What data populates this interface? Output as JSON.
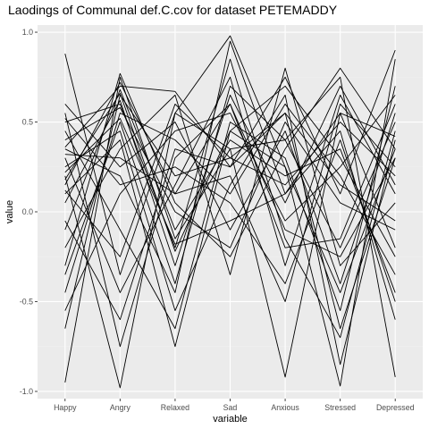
{
  "chart_data": {
    "type": "line",
    "title": "Laodings of Communal def.C.cov for dataset PETEMADDY",
    "xlabel": "variable",
    "ylabel": "value",
    "categories": [
      "Happy",
      "Angry",
      "Relaxed",
      "Sad",
      "Anxious",
      "Stressed",
      "Depressed"
    ],
    "ylim": [
      -1.04,
      1.04
    ],
    "yticks": [
      -1.0,
      -0.5,
      0.0,
      0.5,
      1.0
    ],
    "ytick_labels": [
      "-1.0",
      "-0.5",
      "0.0",
      "0.5",
      "1.0"
    ],
    "grid": true,
    "legend": "none",
    "colors": {
      "panel": "#ebebeb",
      "grid_major": "#ffffff",
      "grid_minor": "#f2f2f2",
      "line": "#000000",
      "tick_text": "#4d4d4d",
      "tick_mark": "#333333"
    },
    "series": [
      {
        "values": [
          0.88,
          -0.35,
          0.55,
          0.98,
          0.25,
          -0.97,
          0.85
        ]
      },
      {
        "values": [
          -0.95,
          0.75,
          -0.15,
          0.35,
          -0.92,
          0.55,
          -0.2
        ]
      },
      {
        "values": [
          0.36,
          0.7,
          0.67,
          0.25,
          0.75,
          0.1,
          0.9
        ]
      },
      {
        "values": [
          -0.65,
          0.65,
          0.2,
          0.3,
          0.55,
          -0.65,
          0.3
        ]
      },
      {
        "values": [
          0.2,
          -0.98,
          0.55,
          0.35,
          0.4,
          0.75,
          -0.92
        ]
      },
      {
        "values": [
          0.5,
          0.6,
          -0.2,
          0.85,
          -0.15,
          -0.7,
          0.45
        ]
      },
      {
        "values": [
          0.1,
          0.4,
          -0.75,
          0.45,
          0.7,
          0.3,
          -0.25
        ]
      },
      {
        "values": [
          -0.3,
          0.77,
          0.05,
          -0.25,
          0.35,
          0.8,
          0.35
        ]
      },
      {
        "values": [
          0.55,
          -0.75,
          0.3,
          0.6,
          -0.2,
          -0.15,
          0.6
        ]
      },
      {
        "values": [
          0.35,
          0.2,
          -0.45,
          0.95,
          0.1,
          0.45,
          -0.6
        ]
      },
      {
        "values": [
          -0.2,
          0.35,
          0.65,
          -0.35,
          0.8,
          -0.3,
          0.05
        ]
      },
      {
        "values": [
          0.15,
          0.72,
          0.1,
          0.2,
          -0.5,
          0.6,
          0.25
        ]
      },
      {
        "values": [
          0.45,
          -0.1,
          -0.65,
          0.5,
          0.3,
          -0.55,
          0.7
        ]
      },
      {
        "values": [
          -0.45,
          0.55,
          0.4,
          0.1,
          0.6,
          0.2,
          -0.35
        ]
      },
      {
        "values": [
          0.05,
          0.62,
          -0.3,
          0.65,
          0.05,
          0.7,
          0.15
        ]
      },
      {
        "values": [
          0.6,
          0.25,
          0.5,
          -0.1,
          0.45,
          -0.4,
          0.55
        ]
      },
      {
        "values": [
          -0.1,
          0.68,
          -0.1,
          0.4,
          0.2,
          0.35,
          -0.45
        ]
      },
      {
        "values": [
          0.3,
          -0.45,
          0.15,
          0.75,
          -0.3,
          0.65,
          0.1
        ]
      },
      {
        "values": [
          0.25,
          0.45,
          -0.55,
          0.15,
          0.65,
          -0.85,
          0.4
        ]
      },
      {
        "values": [
          -0.55,
          0.1,
          0.45,
          0.55,
          -0.05,
          0.25,
          0.65
        ]
      },
      {
        "values": [
          0.4,
          0.58,
          0.0,
          -0.2,
          0.5,
          0.05,
          -0.1
        ]
      },
      {
        "values": [
          0.12,
          -0.25,
          0.6,
          0.3,
          0.15,
          0.5,
          0.2
        ]
      },
      {
        "values": [
          -0.35,
          0.5,
          -0.4,
          0.7,
          0.4,
          -0.2,
          0.5
        ]
      },
      {
        "values": [
          0.52,
          0.15,
          0.25,
          0.05,
          -0.4,
          0.4,
          -0.5
        ]
      },
      {
        "values": [
          0.18,
          0.66,
          -0.22,
          0.45,
          0.25,
          -0.45,
          0.35
        ]
      },
      {
        "values": [
          -0.05,
          -0.6,
          0.35,
          0.25,
          0.55,
          0.15,
          -0.05
        ]
      },
      {
        "values": [
          0.22,
          0.52,
          -0.18,
          -0.05,
          0.1,
          0.55,
          0.42
        ]
      },
      {
        "values": [
          0.32,
          0.3,
          0.1,
          0.6,
          -0.1,
          -0.25,
          0.3
        ]
      }
    ]
  }
}
